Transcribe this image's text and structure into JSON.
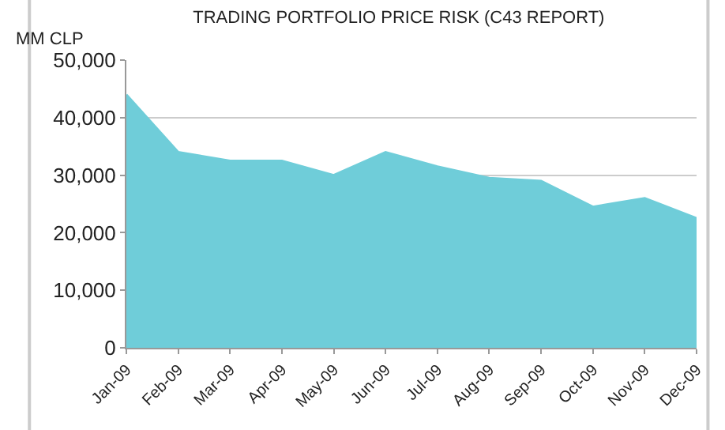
{
  "chart_data": {
    "type": "area",
    "title": "TRADING PORTFOLIO PRICE RISK (C43 REPORT)",
    "ylabel": "MM CLP",
    "categories": [
      "Jan-09",
      "Feb-09",
      "Mar-09",
      "Apr-09",
      "May-09",
      "Jun-09",
      "Jul-09",
      "Aug-09",
      "Sep-09",
      "Oct-09",
      "Nov-09",
      "Dec-09"
    ],
    "series": [
      {
        "color": "#6fcdd9",
        "values": [
          44000,
          34000,
          32500,
          32500,
          30000,
          34000,
          31500,
          29500,
          29000,
          24500,
          26000,
          22500
        ]
      }
    ],
    "ylim": [
      0,
      50000
    ],
    "yticks": [
      {
        "value": 0,
        "label": "0"
      },
      {
        "value": 10000,
        "label": "10,000"
      },
      {
        "value": 20000,
        "label": "20,000"
      },
      {
        "value": 30000,
        "label": "30,000"
      },
      {
        "value": 40000,
        "label": "40,000"
      },
      {
        "value": 50000,
        "label": "50,000"
      }
    ],
    "grid": "y",
    "legend": false
  }
}
